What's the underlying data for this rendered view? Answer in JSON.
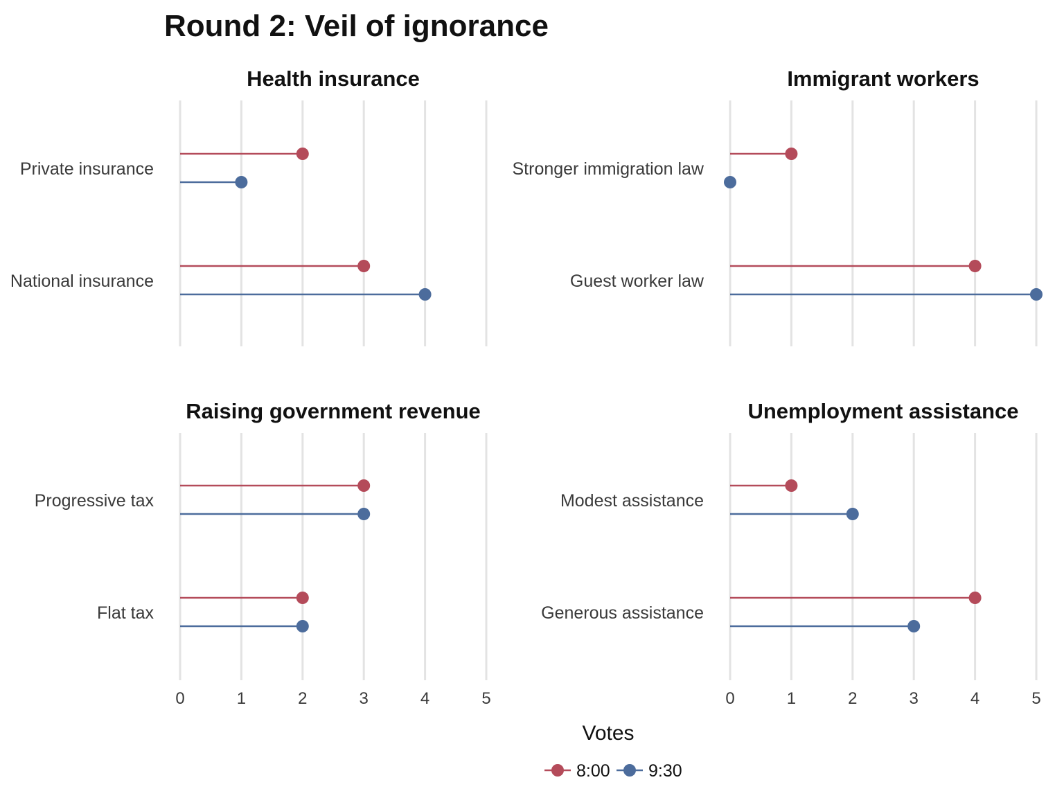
{
  "chart_data": {
    "type": "dot-lollipop",
    "title": "Round 2: Veil of ignorance",
    "xlabel": "Votes",
    "xlim": [
      0,
      5
    ],
    "xticks": [
      "0",
      "1",
      "2",
      "3",
      "4",
      "5"
    ],
    "legend": {
      "position": "bottom",
      "entries": [
        {
          "name": "8:00",
          "color": "#b44b5a"
        },
        {
          "name": "9:30",
          "color": "#4c6c9c"
        }
      ]
    },
    "grid": true,
    "panels": [
      {
        "title": "Health insurance",
        "categories": [
          "Private insurance",
          "National insurance"
        ],
        "series": [
          {
            "name": "8:00",
            "values": [
              2,
              3
            ]
          },
          {
            "name": "9:30",
            "values": [
              1,
              4
            ]
          }
        ]
      },
      {
        "title": "Immigrant workers",
        "categories": [
          "Stronger immigration law",
          "Guest worker law"
        ],
        "series": [
          {
            "name": "8:00",
            "values": [
              1,
              4
            ]
          },
          {
            "name": "9:30",
            "values": [
              0,
              5
            ]
          }
        ]
      },
      {
        "title": "Raising government revenue",
        "categories": [
          "Progressive tax",
          "Flat tax"
        ],
        "series": [
          {
            "name": "8:00",
            "values": [
              3,
              2
            ]
          },
          {
            "name": "9:30",
            "values": [
              3,
              2
            ]
          }
        ]
      },
      {
        "title": "Unemployment assistance",
        "categories": [
          "Modest assistance",
          "Generous assistance"
        ],
        "series": [
          {
            "name": "8:00",
            "values": [
              1,
              4
            ]
          },
          {
            "name": "9:30",
            "values": [
              2,
              3
            ]
          }
        ]
      }
    ]
  }
}
